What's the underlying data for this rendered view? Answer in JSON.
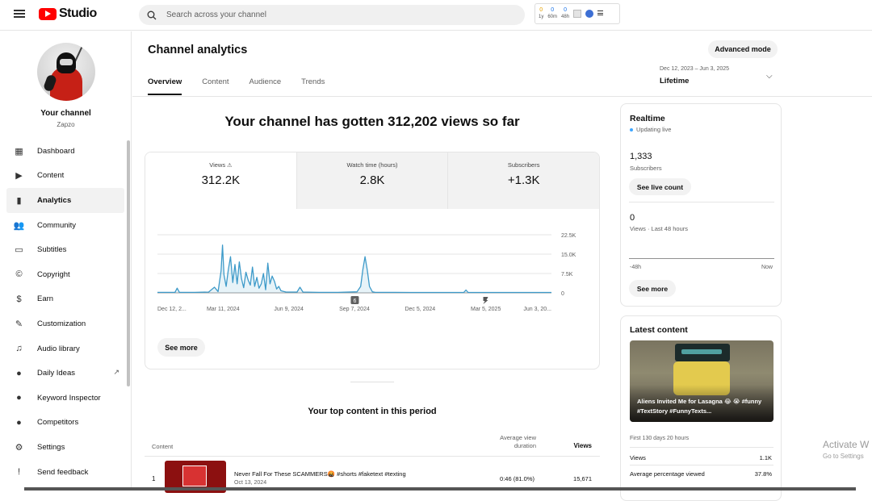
{
  "header": {
    "logo_text": "Studio",
    "search_placeholder": "Search across your channel",
    "extension": {
      "stats": [
        {
          "value": "0",
          "label": "1y"
        },
        {
          "value": "0",
          "label": "60m"
        },
        {
          "value": "0",
          "label": "48h"
        }
      ]
    }
  },
  "sidebar": {
    "your_channel": "Your channel",
    "channel_name": "Zapzo",
    "items": [
      {
        "label": "Dashboard",
        "icon": "dashboard-icon",
        "glyph": "▦"
      },
      {
        "label": "Content",
        "icon": "content-icon",
        "glyph": "▶"
      },
      {
        "label": "Analytics",
        "icon": "analytics-icon",
        "glyph": "▮",
        "active": true
      },
      {
        "label": "Community",
        "icon": "community-icon",
        "glyph": "👥"
      },
      {
        "label": "Subtitles",
        "icon": "subtitles-icon",
        "glyph": "▭"
      },
      {
        "label": "Copyright",
        "icon": "copyright-icon",
        "glyph": "©"
      },
      {
        "label": "Earn",
        "icon": "earn-icon",
        "glyph": "$"
      },
      {
        "label": "Customization",
        "icon": "customization-icon",
        "glyph": "✎"
      },
      {
        "label": "Audio library",
        "icon": "audio-library-icon",
        "glyph": "♫"
      },
      {
        "label": "Daily Ideas",
        "icon": "daily-ideas-icon",
        "glyph": "●",
        "external": true
      },
      {
        "label": "Keyword Inspector",
        "icon": "keyword-inspector-icon",
        "glyph": "●"
      },
      {
        "label": "Competitors",
        "icon": "competitors-icon",
        "glyph": "●"
      },
      {
        "label": "Settings",
        "icon": "settings-icon",
        "glyph": "⚙"
      },
      {
        "label": "Send feedback",
        "icon": "feedback-icon",
        "glyph": "!"
      }
    ]
  },
  "main": {
    "title": "Channel analytics",
    "tabs": [
      {
        "label": "Overview",
        "active": true
      },
      {
        "label": "Content"
      },
      {
        "label": "Audience"
      },
      {
        "label": "Trends"
      }
    ],
    "advanced_mode": "Advanced mode",
    "date_range": "Dec 12, 2023 – Jun 3, 2025",
    "date_label": "Lifetime",
    "headline": "Your channel has gotten 312,202 views so far",
    "metrics": [
      {
        "label": "Views",
        "value": "312.2K",
        "warning": true
      },
      {
        "label": "Watch time (hours)",
        "value": "2.8K"
      },
      {
        "label": "Subscribers",
        "value": "+1.3K"
      }
    ],
    "see_more": "See more",
    "top_content": {
      "title": "Your top content in this period",
      "col_content": "Content",
      "col_avd_1": "Average view",
      "col_avd_2": "duration",
      "col_views": "Views",
      "rows": [
        {
          "rank": "1",
          "title": "Never Fall For These SCAMMERS🤬 #shorts #faketext #texting",
          "date": "Oct 13, 2024",
          "avd": "0:46  (81.0%)",
          "views": "15,671"
        }
      ]
    }
  },
  "realtime": {
    "title": "Realtime",
    "status": "Updating live",
    "subs_value": "1,333",
    "subs_label": "Subscribers",
    "live_count_btn": "See live count",
    "views_value": "0",
    "views_label": "Views · Last 48 hours",
    "axis_left": "-48h",
    "axis_right": "Now",
    "see_more": "See more"
  },
  "latest": {
    "title": "Latest content",
    "video_title": "Aliens Invited Me for Lasagna 😂 😭 #funny #TextStory #FunnyTexts...",
    "period": "First 130 days 20 hours",
    "rows": [
      {
        "label": "Views",
        "value": "1.1K"
      },
      {
        "label": "Average percentage viewed",
        "value": "37.8%"
      }
    ]
  },
  "watermark": {
    "line1": "Activate W",
    "line2": "Go to Settings"
  },
  "chart_data": {
    "type": "line",
    "title": "",
    "x_tick_labels": [
      "Dec 12, 2...",
      "Mar 11, 2024",
      "Jun 9, 2024",
      "Sep 7, 2024",
      "Dec 5, 2024",
      "Mar 5, 2025",
      "Jun 3, 20..."
    ],
    "y_tick_labels": [
      "22.5K",
      "15.0K",
      "7.5K",
      "0"
    ],
    "ylim": [
      0,
      22500
    ],
    "x_range": [
      "2023-12-12",
      "2025-06-03"
    ],
    "grid": true,
    "color": "#3d9ac9",
    "markers": [
      {
        "date": "2024-09-07",
        "label": "6",
        "icon": "video-marker-icon"
      },
      {
        "date": "2025-03-05",
        "label": "",
        "icon": "shorts-marker-icon"
      }
    ],
    "series": [
      {
        "x": [
          "2023-12-12",
          "2024-01-05",
          "2024-01-08",
          "2024-01-11",
          "2024-02-01",
          "2024-02-20",
          "2024-02-28",
          "2024-03-04",
          "2024-03-08",
          "2024-03-10",
          "2024-03-12",
          "2024-03-15",
          "2024-03-18",
          "2024-03-21",
          "2024-03-24",
          "2024-03-27",
          "2024-03-30",
          "2024-04-02",
          "2024-04-05",
          "2024-04-08",
          "2024-04-11",
          "2024-04-14",
          "2024-04-17",
          "2024-04-20",
          "2024-04-23",
          "2024-04-26",
          "2024-04-29",
          "2024-05-02",
          "2024-05-05",
          "2024-05-08",
          "2024-05-11",
          "2024-05-14",
          "2024-05-17",
          "2024-05-20",
          "2024-05-23",
          "2024-05-26",
          "2024-05-29",
          "2024-06-01",
          "2024-06-05",
          "2024-06-20",
          "2024-06-24",
          "2024-06-28",
          "2024-07-20",
          "2024-08-15",
          "2024-09-10",
          "2024-09-15",
          "2024-09-18",
          "2024-09-21",
          "2024-09-24",
          "2024-09-27",
          "2024-10-01",
          "2024-10-05",
          "2024-11-01",
          "2024-12-01",
          "2025-01-01",
          "2025-02-03",
          "2025-02-06",
          "2025-02-09",
          "2025-03-01",
          "2025-04-01",
          "2025-05-01",
          "2025-06-03"
        ],
        "values": [
          200,
          200,
          1800,
          200,
          200,
          300,
          2200,
          500,
          8500,
          18500,
          7000,
          2500,
          9000,
          14000,
          4000,
          11000,
          3500,
          12000,
          5500,
          2000,
          8000,
          5000,
          3000,
          10000,
          2500,
          6000,
          1800,
          3500,
          7500,
          1200,
          11500,
          3500,
          6500,
          4500,
          1500,
          2500,
          800,
          600,
          300,
          300,
          2200,
          300,
          200,
          200,
          400,
          2500,
          9000,
          14000,
          9000,
          2500,
          400,
          200,
          200,
          150,
          150,
          150,
          1100,
          150,
          150,
          150,
          150,
          150
        ]
      }
    ]
  }
}
